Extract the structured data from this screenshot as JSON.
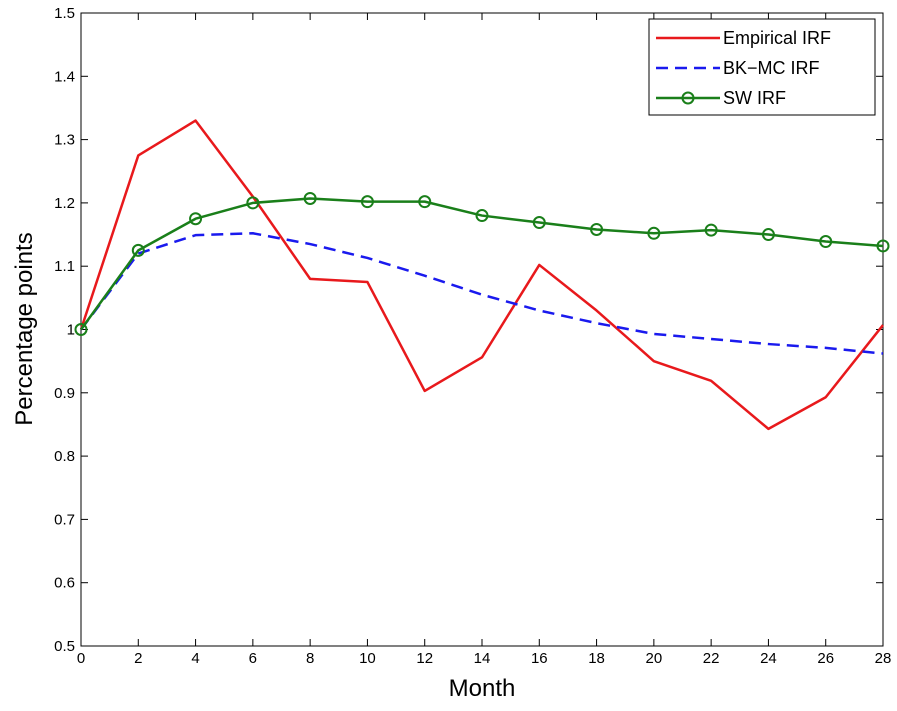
{
  "chart_data": {
    "type": "line",
    "title": "",
    "xlabel": "Month",
    "ylabel": "Percentage points",
    "xlim": [
      0,
      28
    ],
    "ylim": [
      0.5,
      1.5
    ],
    "xticks": [
      "0",
      "2",
      "4",
      "6",
      "8",
      "10",
      "12",
      "14",
      "16",
      "18",
      "20",
      "22",
      "24",
      "26",
      "28"
    ],
    "yticks": [
      "0.5",
      "0.6",
      "0.7",
      "0.8",
      "0.9",
      "1",
      "1.1",
      "1.2",
      "1.3",
      "1.4",
      "1.5"
    ],
    "grid": false,
    "legend_position": "top-right",
    "x": [
      0,
      2,
      4,
      6,
      8,
      10,
      12,
      14,
      16,
      18,
      20,
      22,
      24,
      26,
      28
    ],
    "series": [
      {
        "name": "Empirical IRF",
        "color": "#e8191c",
        "style": "solid",
        "marker": "none",
        "values": [
          1.0,
          1.275,
          1.33,
          1.21,
          1.08,
          1.075,
          0.903,
          0.956,
          1.102,
          1.03,
          0.95,
          0.919,
          0.843,
          0.893,
          1.007
        ]
      },
      {
        "name": "BK−MC IRF",
        "color": "#1a1aee",
        "style": "dashed",
        "marker": "none",
        "values": [
          1.0,
          1.12,
          1.149,
          1.152,
          1.135,
          1.113,
          1.085,
          1.055,
          1.03,
          1.01,
          0.993,
          0.985,
          0.977,
          0.971,
          0.962
        ]
      },
      {
        "name": "SW IRF",
        "color": "#1a7f1a",
        "style": "solid",
        "marker": "circle",
        "values": [
          1.0,
          1.125,
          1.175,
          1.2,
          1.207,
          1.202,
          1.202,
          1.18,
          1.169,
          1.158,
          1.152,
          1.157,
          1.15,
          1.139,
          1.132
        ]
      }
    ]
  }
}
